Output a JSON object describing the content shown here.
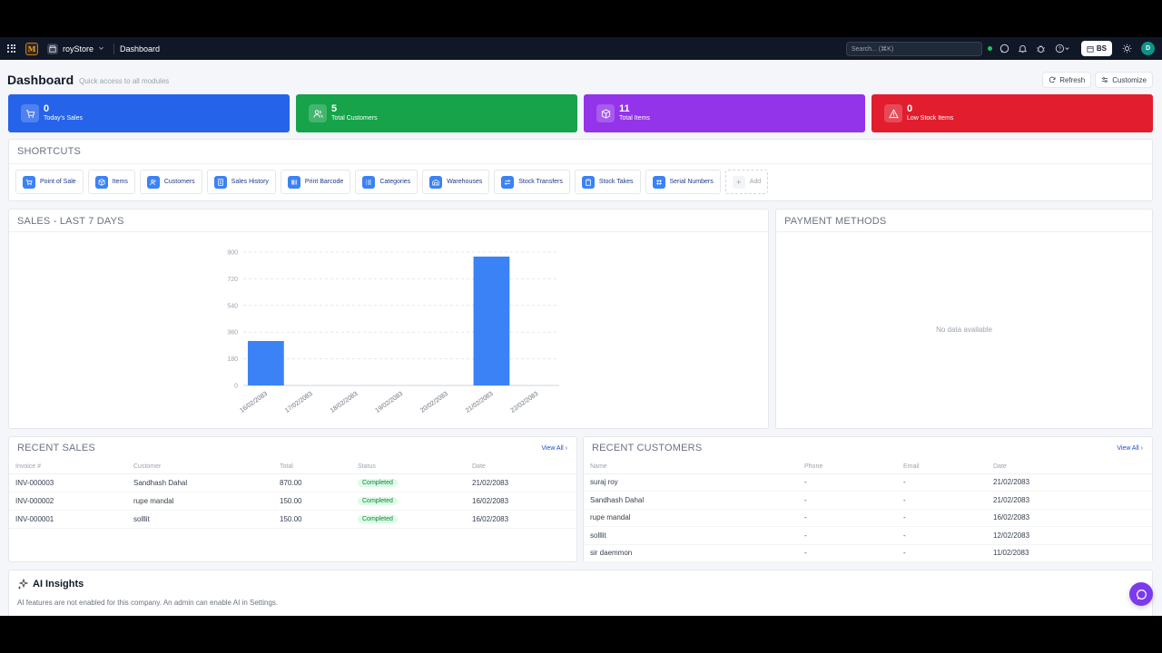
{
  "topbar": {
    "logo_letter": "M",
    "store_name": "royStore",
    "page": "Dashboard",
    "search_placeholder": "Search... (⌘K)",
    "calendar_btn": "BS",
    "avatar_initial": "D"
  },
  "header": {
    "title": "Dashboard",
    "subtitle": "Quick access to all modules",
    "refresh_label": "Refresh",
    "customize_label": "Customize"
  },
  "stats": [
    {
      "value": "0",
      "label": "Today's Sales",
      "color": "#2563eb",
      "icon": "cart-icon"
    },
    {
      "value": "5",
      "label": "Total Customers",
      "color": "#16a34a",
      "icon": "users-icon"
    },
    {
      "value": "11",
      "label": "Total Items",
      "color": "#9333ea",
      "icon": "box-icon"
    },
    {
      "value": "0",
      "label": "Low Stock Items",
      "color": "#e11d2e",
      "icon": "warning-icon"
    }
  ],
  "shortcuts": {
    "title": "SHORTCUTS",
    "items": [
      "Point of Sale",
      "Items",
      "Customers",
      "Sales History",
      "Print Barcode",
      "Categories",
      "Warehouses",
      "Stock Transfers",
      "Stock Takes",
      "Serial Numbers"
    ],
    "add_label": "Add"
  },
  "sales_chart": {
    "title": "SALES - LAST 7 DAYS"
  },
  "payment": {
    "title": "PAYMENT METHODS",
    "empty": "No data available"
  },
  "chart_data": {
    "type": "bar",
    "categories": [
      "16/02/2083",
      "17/02/2083",
      "18/02/2083",
      "19/02/2083",
      "20/02/2083",
      "21/02/2083",
      "22/02/2083"
    ],
    "values": [
      300,
      0,
      0,
      0,
      0,
      870,
      0
    ],
    "ylim": [
      0,
      900
    ],
    "yticks": [
      "0",
      "180",
      "360",
      "540",
      "720",
      "900"
    ],
    "color": "#3b82f6",
    "grid": true
  },
  "recent_sales": {
    "title": "RECENT SALES",
    "view_all": "View All",
    "columns": [
      "Invoice #",
      "Customer",
      "Total",
      "Status",
      "Date"
    ],
    "rows": [
      [
        "INV-000003",
        "Sandhash Dahal",
        "870.00",
        "Completed",
        "21/02/2083"
      ],
      [
        "INV-000002",
        "rupe mandal",
        "150.00",
        "Completed",
        "16/02/2083"
      ],
      [
        "INV-000001",
        "solllit",
        "150.00",
        "Completed",
        "16/02/2083"
      ]
    ]
  },
  "recent_customers": {
    "title": "RECENT CUSTOMERS",
    "view_all": "View All",
    "columns": [
      "Name",
      "Phone",
      "Email",
      "Date"
    ],
    "rows": [
      [
        "suraj roy",
        "-",
        "-",
        "21/02/2083"
      ],
      [
        "Sandhash Dahal",
        "-",
        "-",
        "21/02/2083"
      ],
      [
        "rupe mandal",
        "-",
        "-",
        "16/02/2083"
      ],
      [
        "solllit",
        "-",
        "-",
        "12/02/2083"
      ],
      [
        "sir daemmon",
        "-",
        "-",
        "11/02/2083"
      ]
    ]
  },
  "ai": {
    "title": "AI Insights",
    "text": "AI features are not enabled for this company. An admin can enable AI in Settings."
  }
}
